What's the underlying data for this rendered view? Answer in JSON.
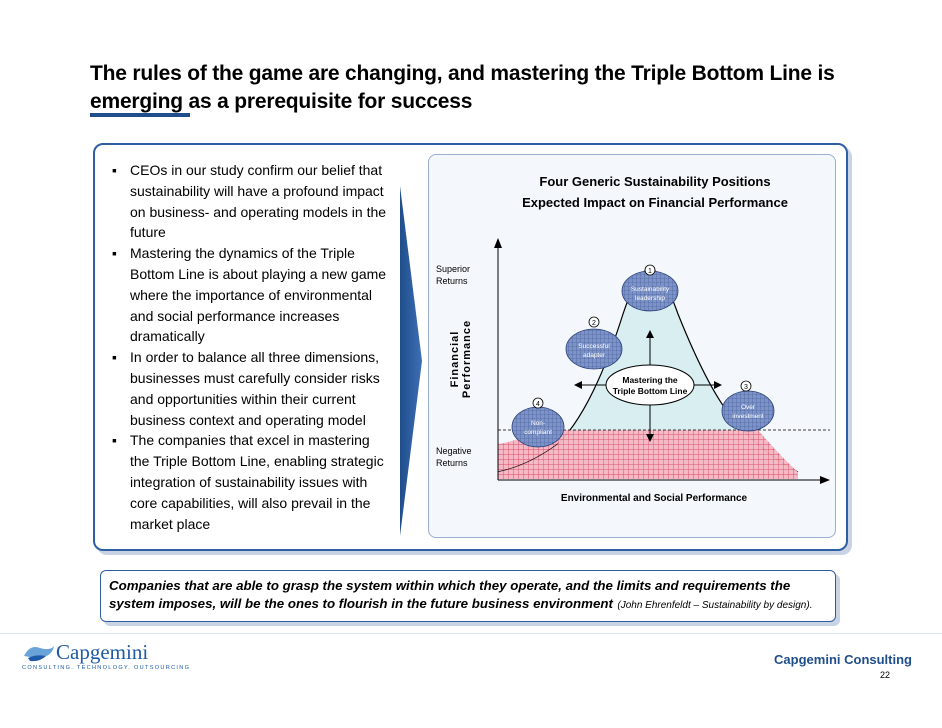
{
  "slide": {
    "title_line1": "The rules of the game are changing, and mastering the Triple Bottom Line is",
    "title_line2": "emerging as a prerequisite for success",
    "page_number": "22"
  },
  "bullets": [
    "CEOs in our study confirm our belief that sustainability will have a profound impact on business- and operating models in the future",
    "Mastering the dynamics of the Triple Bottom Line is about playing a new game where the importance of environmental and social performance increases dramatically",
    "In order to balance all three dimensions, businesses must carefully consider risks and opportunities within their current business context and operating model",
    "The companies that excel in mastering the Triple Bottom Line, enabling strategic integration of sustainability issues with core capabilities, will also prevail in the market place"
  ],
  "diagram": {
    "title_line1": "Four Generic Sustainability Positions",
    "title_line2": "Expected Impact on Financial Performance",
    "y_axis_label_line1": "Financial",
    "y_axis_label_line2": "Performance",
    "y_top_label_line1": "Superior",
    "y_top_label_line2": "Returns",
    "y_bottom_label_line1": "Negative",
    "y_bottom_label_line2": "Returns",
    "x_axis_label": "Environmental and Social Performance",
    "center_label_line1": "Mastering the",
    "center_label_line2": "Triple Bottom Line",
    "positions": [
      {
        "number": "1",
        "line1": "Sustainability",
        "line2": "leadership"
      },
      {
        "number": "2",
        "line1": "Successful",
        "line2": "adapter"
      },
      {
        "number": "3",
        "line1": "Over",
        "line2": "investment"
      },
      {
        "number": "4",
        "line1": "Non-",
        "line2": "compliant"
      }
    ],
    "colors": {
      "mountain_fill": "#d8eef0",
      "risk_fill": "#f5b8c4",
      "risk_hatch": "#d94a63",
      "bubble_fill": "#7d93c7",
      "arrow_fill": "#1f4e8c"
    }
  },
  "quote": {
    "text": "Companies that are able to grasp the system within which they operate, and the limits and requirements the system imposes, will be the ones to flourish in the future business environment",
    "citation": "(John Ehrenfeldt – Sustainability by design)."
  },
  "footer": {
    "logo_word": "Capgemini",
    "logo_tagline": "CONSULTING. TECHNOLOGY. OUTSOURCING",
    "brand": "Capgemini Consulting"
  }
}
